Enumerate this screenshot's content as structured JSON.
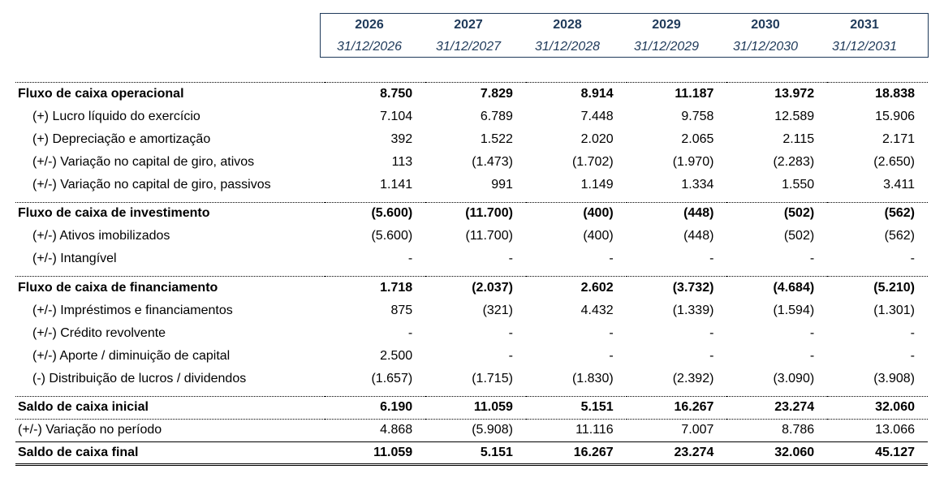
{
  "columns": [
    {
      "year": "2026",
      "date": "31/12/2026"
    },
    {
      "year": "2027",
      "date": "31/12/2027"
    },
    {
      "year": "2028",
      "date": "31/12/2028"
    },
    {
      "year": "2029",
      "date": "31/12/2029"
    },
    {
      "year": "2030",
      "date": "31/12/2030"
    },
    {
      "year": "2031",
      "date": "31/12/2031"
    }
  ],
  "rows": {
    "op": {
      "label": "Fluxo de caixa operacional",
      "v": [
        "8.750",
        "7.829",
        "8.914",
        "11.187",
        "13.972",
        "18.838"
      ]
    },
    "lucro": {
      "label": "(+) Lucro líquido do exercício",
      "v": [
        "7.104",
        "6.789",
        "7.448",
        "9.758",
        "12.589",
        "15.906"
      ]
    },
    "depr": {
      "label": "(+) Depreciação e amortização",
      "v": [
        "392",
        "1.522",
        "2.020",
        "2.065",
        "2.115",
        "2.171"
      ]
    },
    "giro_at": {
      "label": "(+/-) Variação no capital de giro, ativos",
      "v": [
        "113",
        "(1.473)",
        "(1.702)",
        "(1.970)",
        "(2.283)",
        "(2.650)"
      ]
    },
    "giro_pas": {
      "label": "(+/-) Variação no capital de giro, passivos",
      "v": [
        "1.141",
        "991",
        "1.149",
        "1.334",
        "1.550",
        "3.411"
      ]
    },
    "inv": {
      "label": "Fluxo de caixa de investimento",
      "v": [
        "(5.600)",
        "(11.700)",
        "(400)",
        "(448)",
        "(502)",
        "(562)"
      ]
    },
    "imob": {
      "label": "(+/-) Ativos imobilizados",
      "v": [
        "(5.600)",
        "(11.700)",
        "(400)",
        "(448)",
        "(502)",
        "(562)"
      ]
    },
    "intang": {
      "label": "(+/-) Intangível",
      "v": [
        "-",
        "-",
        "-",
        "-",
        "-",
        "-"
      ]
    },
    "fin": {
      "label": "Fluxo de caixa de financiamento",
      "v": [
        "1.718",
        "(2.037)",
        "2.602",
        "(3.732)",
        "(4.684)",
        "(5.210)"
      ]
    },
    "emprest": {
      "label": "(+/-) Impréstimos e financiamentos",
      "v": [
        "875",
        "(321)",
        "4.432",
        "(1.339)",
        "(1.594)",
        "(1.301)"
      ]
    },
    "credito": {
      "label": "(+/-) Crédito revolvente",
      "v": [
        "-",
        "-",
        "-",
        "-",
        "-",
        "-"
      ]
    },
    "aporte": {
      "label": "(+/-) Aporte / diminuição de capital",
      "v": [
        "2.500",
        "-",
        "-",
        "-",
        "-",
        "-"
      ]
    },
    "dist": {
      "label": "(-) Distribuição de lucros / dividendos",
      "v": [
        "(1.657)",
        "(1.715)",
        "(1.830)",
        "(2.392)",
        "(3.090)",
        "(3.908)"
      ]
    },
    "saldo_ini": {
      "label": "Saldo de caixa inicial",
      "v": [
        "6.190",
        "11.059",
        "5.151",
        "16.267",
        "23.274",
        "32.060"
      ]
    },
    "variacao": {
      "label": "(+/-) Variação no período",
      "v": [
        "4.868",
        "(5.908)",
        "11.116",
        "7.007",
        "8.786",
        "13.066"
      ]
    },
    "saldo_fin": {
      "label": "Saldo de caixa final",
      "v": [
        "11.059",
        "5.151",
        "16.267",
        "23.274",
        "32.060",
        "45.127"
      ]
    }
  },
  "colors": {
    "header_text": "#1f3a5a",
    "header_border": "#1f3a5a"
  }
}
